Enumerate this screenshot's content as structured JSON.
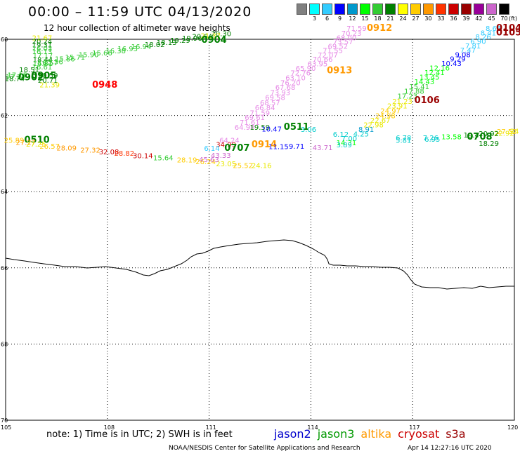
{
  "header": {
    "title": "00:00 – 11:59 UTC 04/13/2020",
    "subtitle": "12 hour collection of altimeter wave heights"
  },
  "color_scale": {
    "unit": "(ft)",
    "bins": [
      {
        "label": "",
        "color": "#808080"
      },
      {
        "label": "3",
        "color": "#00ffff"
      },
      {
        "label": "6",
        "color": "#33ccff"
      },
      {
        "label": "9",
        "color": "#0000ff"
      },
      {
        "label": "12",
        "color": "#0099cc"
      },
      {
        "label": "15",
        "color": "#00ff00"
      },
      {
        "label": "18",
        "color": "#33cc33"
      },
      {
        "label": "21",
        "color": "#008000"
      },
      {
        "label": "24",
        "color": "#ffff00"
      },
      {
        "label": "27",
        "color": "#ffcc00"
      },
      {
        "label": "30",
        "color": "#ff9900"
      },
      {
        "label": "33",
        "color": "#ff3300"
      },
      {
        "label": "36",
        "color": "#cc0000"
      },
      {
        "label": "39",
        "color": "#990000"
      },
      {
        "label": "42",
        "color": "#990099"
      },
      {
        "label": "45",
        "color": "#cc66cc"
      },
      {
        "label": "70",
        "color": "#000000"
      }
    ]
  },
  "axes": {
    "lat_ticks": [
      "60",
      "62",
      "64",
      "66",
      "68",
      "70"
    ],
    "lon_ticks": [
      "105",
      "108",
      "111",
      "114",
      "117",
      "120"
    ]
  },
  "observations": [
    {
      "text": "21.67",
      "color": "#e8e800",
      "lon": 105.78,
      "lat": 60.03
    },
    {
      "text": "20.24",
      "color": "#008000",
      "lon": 105.78,
      "lat": 60.12
    },
    {
      "text": "19.31",
      "color": "#008000",
      "lon": 105.78,
      "lat": 60.21
    },
    {
      "text": "16.03",
      "color": "#33cc33",
      "lon": 105.78,
      "lat": 60.3
    },
    {
      "text": "16.13",
      "color": "#33cc33",
      "lon": 105.78,
      "lat": 60.39
    },
    {
      "text": "17.17",
      "color": "#33cc33",
      "lon": 105.8,
      "lat": 60.5
    },
    {
      "text": "18.44",
      "color": "#008000",
      "lon": 105.8,
      "lat": 60.6
    },
    {
      "text": "16.81",
      "color": "#33cc33",
      "lon": 105.8,
      "lat": 60.7
    },
    {
      "text": "16.57",
      "color": "#33cc33",
      "lon": 105.95,
      "lat": 60.68
    },
    {
      "text": "16.61",
      "color": "#33cc33",
      "lon": 105.78,
      "lat": 60.79
    },
    {
      "text": "15.56",
      "color": "#33cc33",
      "lon": 106.1,
      "lat": 60.65
    },
    {
      "text": "15.86",
      "color": "#33cc33",
      "lon": 106.45,
      "lat": 60.58
    },
    {
      "text": "15.71",
      "color": "#33cc33",
      "lon": 106.75,
      "lat": 60.53
    },
    {
      "text": "15.90",
      "color": "#33cc33",
      "lon": 107.15,
      "lat": 60.47
    },
    {
      "text": "15.66",
      "color": "#33cc33",
      "lon": 107.55,
      "lat": 60.42
    },
    {
      "text": "16.38",
      "color": "#33cc33",
      "lon": 107.95,
      "lat": 60.37
    },
    {
      "text": "16.93",
      "color": "#33cc33",
      "lon": 108.3,
      "lat": 60.31
    },
    {
      "text": "16.94",
      "color": "#33cc33",
      "lon": 108.7,
      "lat": 60.26
    },
    {
      "text": "18.02",
      "color": "#008000",
      "lon": 109.1,
      "lat": 60.2
    },
    {
      "text": "18.13",
      "color": "#008000",
      "lon": 109.45,
      "lat": 60.15
    },
    {
      "text": "19.29",
      "color": "#008000",
      "lon": 109.85,
      "lat": 60.09
    },
    {
      "text": "19.96",
      "color": "#008000",
      "lon": 110.2,
      "lat": 60.04
    },
    {
      "text": "20.64",
      "color": "#008000",
      "lon": 110.5,
      "lat": 59.99
    },
    {
      "text": "20.30",
      "color": "#008000",
      "lon": 111.06,
      "lat": 59.92
    },
    {
      "text": "21.37",
      "color": "#e8e800",
      "lon": 110.75,
      "lat": 59.97
    },
    {
      "text": "0904",
      "color": "#008000",
      "lon": 110.77,
      "lat": 60.09,
      "time": true
    },
    {
      "text": "18.51",
      "color": "#008000",
      "lon": 105.4,
      "lat": 60.87
    },
    {
      "text": "17.15",
      "color": "#33cc33",
      "lon": 105.05,
      "lat": 61.0
    },
    {
      "text": "17.22",
      "color": "#33cc33",
      "lon": 105.0,
      "lat": 61.05
    },
    {
      "text": "20.59",
      "color": "#008000",
      "lon": 105.95,
      "lat": 61.01
    },
    {
      "text": "18.74",
      "color": "#008000",
      "lon": 104.97,
      "lat": 61.1
    },
    {
      "text": "0905",
      "color": "#008000",
      "lon": 105.75,
      "lat": 61.03,
      "time": true
    },
    {
      "text": "0902",
      "color": "#008000",
      "lon": 105.37,
      "lat": 61.08,
      "time": true
    },
    {
      "text": "20.71",
      "color": "#008000",
      "lon": 105.95,
      "lat": 61.14
    },
    {
      "text": "21.39",
      "color": "#e8e800",
      "lon": 106.0,
      "lat": 61.26
    },
    {
      "text": "0948",
      "color": "#ff0000",
      "lon": 107.55,
      "lat": 61.27,
      "time": true
    },
    {
      "text": "25.89",
      "color": "#ffcc00",
      "lon": 104.95,
      "lat": 62.72
    },
    {
      "text": "0510",
      "color": "#008000",
      "lon": 105.55,
      "lat": 62.72,
      "time": true
    },
    {
      "text": "27.27",
      "color": "#ff9900",
      "lon": 105.3,
      "lat": 62.77
    },
    {
      "text": "27.25",
      "color": "#e8e800",
      "lon": 105.6,
      "lat": 62.82
    },
    {
      "text": "26.57",
      "color": "#ffcc00",
      "lon": 106.0,
      "lat": 62.87
    },
    {
      "text": "28.09",
      "color": "#ff9900",
      "lon": 106.5,
      "lat": 62.92
    },
    {
      "text": "27.32",
      "color": "#ff9900",
      "lon": 107.2,
      "lat": 62.97
    },
    {
      "text": "32.08",
      "color": "#cc0000",
      "lon": 107.75,
      "lat": 63.02
    },
    {
      "text": "28.82",
      "color": "#ff3300",
      "lon": 108.2,
      "lat": 63.06
    },
    {
      "text": "30.14",
      "color": "#cc0000",
      "lon": 108.75,
      "lat": 63.12
    },
    {
      "text": "15.64",
      "color": "#33cc33",
      "lon": 109.35,
      "lat": 63.18
    },
    {
      "text": "28.19",
      "color": "#ffcc00",
      "lon": 110.05,
      "lat": 63.23
    },
    {
      "text": "26.24",
      "color": "#ffcc00",
      "lon": 110.6,
      "lat": 63.28
    },
    {
      "text": "23.05",
      "color": "#e8e800",
      "lon": 111.2,
      "lat": 63.33
    },
    {
      "text": "25.52",
      "color": "#ffcc00",
      "lon": 111.7,
      "lat": 63.38
    },
    {
      "text": "24.16",
      "color": "#e8e800",
      "lon": 112.25,
      "lat": 63.38
    },
    {
      "text": "71.59",
      "color": "#e68ae6",
      "lon": 115.05,
      "lat": 59.78
    },
    {
      "text": "70.23",
      "color": "#e68ae6",
      "lon": 114.9,
      "lat": 59.91
    },
    {
      "text": "68.00",
      "color": "#e68ae6",
      "lon": 114.75,
      "lat": 60.03
    },
    {
      "text": "73.57",
      "color": "#e68ae6",
      "lon": 114.65,
      "lat": 60.13
    },
    {
      "text": "69.52",
      "color": "#e68ae6",
      "lon": 114.5,
      "lat": 60.25
    },
    {
      "text": "71.55",
      "color": "#e68ae6",
      "lon": 114.35,
      "lat": 60.36
    },
    {
      "text": "72.07",
      "color": "#e68ae6",
      "lon": 114.2,
      "lat": 60.48
    },
    {
      "text": "70.66",
      "color": "#e68ae6",
      "lon": 114.05,
      "lat": 60.59
    },
    {
      "text": "63.95",
      "color": "#e68ae6",
      "lon": 113.9,
      "lat": 60.71
    },
    {
      "text": "65.90",
      "color": "#e68ae6",
      "lon": 113.55,
      "lat": 60.83
    },
    {
      "text": "72.76",
      "color": "#e68ae6",
      "lon": 113.4,
      "lat": 60.95
    },
    {
      "text": "63.10",
      "color": "#e68ae6",
      "lon": 113.25,
      "lat": 61.08
    },
    {
      "text": "76.20",
      "color": "#e68ae6",
      "lon": 113.1,
      "lat": 61.21
    },
    {
      "text": "67.68",
      "color": "#e68ae6",
      "lon": 112.95,
      "lat": 61.33
    },
    {
      "text": "73.93",
      "color": "#e68ae6",
      "lon": 112.8,
      "lat": 61.46
    },
    {
      "text": "69.58",
      "color": "#e68ae6",
      "lon": 112.65,
      "lat": 61.59
    },
    {
      "text": "68.57",
      "color": "#e68ae6",
      "lon": 112.5,
      "lat": 61.73
    },
    {
      "text": "66.84",
      "color": "#e68ae6",
      "lon": 112.35,
      "lat": 61.86
    },
    {
      "text": "71.59",
      "color": "#e68ae6",
      "lon": 112.2,
      "lat": 62.0
    },
    {
      "text": "69.61",
      "color": "#e68ae6",
      "lon": 112.05,
      "lat": 62.12
    },
    {
      "text": "71.61",
      "color": "#e68ae6",
      "lon": 111.9,
      "lat": 62.25
    },
    {
      "text": "64.98",
      "color": "#e68ae6",
      "lon": 111.75,
      "lat": 62.38
    },
    {
      "text": "0912",
      "color": "#ff9900",
      "lon": 115.65,
      "lat": 59.78,
      "time": true
    },
    {
      "text": "0913",
      "color": "#ff9900",
      "lon": 114.47,
      "lat": 60.89,
      "time": true
    },
    {
      "text": "19.59",
      "color": "#008000",
      "lon": 112.2,
      "lat": 62.38
    },
    {
      "text": "10.47",
      "color": "#0000ff",
      "lon": 112.55,
      "lat": 62.42
    },
    {
      "text": "0511",
      "color": "#008000",
      "lon": 113.2,
      "lat": 62.38,
      "time": true
    },
    {
      "text": "3.06",
      "color": "#00cccc",
      "lon": 113.7,
      "lat": 62.43
    },
    {
      "text": "64.24",
      "color": "#e68ae6",
      "lon": 111.3,
      "lat": 62.72
    },
    {
      "text": "34.99",
      "color": "#cc0000",
      "lon": 111.2,
      "lat": 62.83
    },
    {
      "text": "0914",
      "color": "#ff9900",
      "lon": 112.25,
      "lat": 62.84,
      "time": true
    },
    {
      "text": "11.15",
      "color": "#0000ff",
      "lon": 112.75,
      "lat": 62.88
    },
    {
      "text": "9.71",
      "color": "#0000ff",
      "lon": 113.35,
      "lat": 62.87
    },
    {
      "text": "43.71",
      "color": "#cc66cc",
      "lon": 114.05,
      "lat": 62.91
    },
    {
      "text": "6.14",
      "color": "#33ccff",
      "lon": 110.85,
      "lat": 62.93
    },
    {
      "text": "0707",
      "color": "#008000",
      "lon": 111.45,
      "lat": 62.93,
      "time": true
    },
    {
      "text": "43.33",
      "color": "#cc66cc",
      "lon": 111.05,
      "lat": 63.11
    },
    {
      "text": "45.63",
      "color": "#cc66cc",
      "lon": 110.7,
      "lat": 63.22
    },
    {
      "text": "8.66",
      "color": "#33ccff",
      "lon": 119.15,
      "lat": 59.78
    },
    {
      "text": "8.41",
      "color": "#33ccff",
      "lon": 119.0,
      "lat": 59.9
    },
    {
      "text": "8.26",
      "color": "#33ccff",
      "lon": 118.85,
      "lat": 60.0
    },
    {
      "text": "6.90",
      "color": "#33ccff",
      "lon": 118.7,
      "lat": 60.12
    },
    {
      "text": "7.81",
      "color": "#33ccff",
      "lon": 118.55,
      "lat": 60.24
    },
    {
      "text": "7.47",
      "color": "#33ccff",
      "lon": 118.4,
      "lat": 60.35
    },
    {
      "text": "9.08",
      "color": "#0000ff",
      "lon": 118.25,
      "lat": 60.47
    },
    {
      "text": "9.29",
      "color": "#0000ff",
      "lon": 118.1,
      "lat": 60.58
    },
    {
      "text": "10.43",
      "color": "#0000ff",
      "lon": 117.85,
      "lat": 60.7
    },
    {
      "text": "12.16",
      "color": "#00ff00",
      "lon": 117.5,
      "lat": 60.82
    },
    {
      "text": "12.41",
      "color": "#00ff00",
      "lon": 117.35,
      "lat": 60.94
    },
    {
      "text": "13.45",
      "color": "#00ff00",
      "lon": 117.2,
      "lat": 61.06
    },
    {
      "text": "14.43",
      "color": "#00ff00",
      "lon": 117.05,
      "lat": 61.18
    },
    {
      "text": "15.41",
      "color": "#33cc33",
      "lon": 116.9,
      "lat": 61.31
    },
    {
      "text": "17.88",
      "color": "#33cc33",
      "lon": 116.75,
      "lat": 61.43
    },
    {
      "text": "17.23",
      "color": "#33cc33",
      "lon": 116.55,
      "lat": 61.56
    },
    {
      "text": "21.23",
      "color": "#e8e800",
      "lon": 116.4,
      "lat": 61.69
    },
    {
      "text": "0106",
      "color": "#990000",
      "lon": 117.05,
      "lat": 61.68,
      "time": true
    },
    {
      "text": "23.91",
      "color": "#e8e800",
      "lon": 116.25,
      "lat": 61.81
    },
    {
      "text": "24.97",
      "color": "#ffcc00",
      "lon": 116.05,
      "lat": 61.94
    },
    {
      "text": "24.98",
      "color": "#ffcc00",
      "lon": 115.9,
      "lat": 62.07
    },
    {
      "text": "22.67",
      "color": "#e8e800",
      "lon": 115.75,
      "lat": 62.19
    },
    {
      "text": "22.98",
      "color": "#e8e800",
      "lon": 115.55,
      "lat": 62.31
    },
    {
      "text": "8.91",
      "color": "#0099cc",
      "lon": 115.4,
      "lat": 62.43
    },
    {
      "text": "4.25",
      "color": "#00cccc",
      "lon": 115.25,
      "lat": 62.55
    },
    {
      "text": "6.12",
      "color": "#00cccc",
      "lon": 114.65,
      "lat": 62.56
    },
    {
      "text": "7.00",
      "color": "#00cccc",
      "lon": 114.9,
      "lat": 62.67
    },
    {
      "text": "14.31",
      "color": "#00ff00",
      "lon": 114.75,
      "lat": 62.78
    },
    {
      "text": "3.89",
      "color": "#00cccc",
      "lon": 114.75,
      "lat": 62.84
    },
    {
      "text": "0104",
      "color": "#990000",
      "lon": 119.6,
      "lat": 59.78,
      "time": true
    },
    {
      "text": "0105",
      "color": "#990000",
      "lon": 119.55,
      "lat": 59.9,
      "time": true
    },
    {
      "text": "27.52",
      "color": "#ffcc00",
      "lon": 119.7,
      "lat": 62.49
    },
    {
      "text": "22.92",
      "color": "#e8e800",
      "lon": 119.4,
      "lat": 62.53
    },
    {
      "text": "20.92",
      "color": "#008000",
      "lon": 118.95,
      "lat": 62.54
    },
    {
      "text": "19.4",
      "color": "#008000",
      "lon": 118.5,
      "lat": 62.58
    },
    {
      "text": "0708",
      "color": "#008000",
      "lon": 118.6,
      "lat": 62.63,
      "time": true
    },
    {
      "text": "13.58",
      "color": "#00ff00",
      "lon": 117.85,
      "lat": 62.62
    },
    {
      "text": "7.26",
      "color": "#00cccc",
      "lon": 117.3,
      "lat": 62.65
    },
    {
      "text": "6.95",
      "color": "#00cccc",
      "lon": 117.35,
      "lat": 62.69
    },
    {
      "text": "6.78",
      "color": "#00cccc",
      "lon": 116.5,
      "lat": 62.65
    },
    {
      "text": "5.81",
      "color": "#00cccc",
      "lon": 116.5,
      "lat": 62.72
    },
    {
      "text": "18.29",
      "color": "#008000",
      "lon": 118.95,
      "lat": 62.8
    },
    {
      "text": "24",
      "color": "#e8e800",
      "lon": 120.0,
      "lat": 62.48
    }
  ],
  "footer": {
    "note": "note: 1) Time is in UTC; 2) SWH is in feet",
    "legend": [
      {
        "label": "jason2",
        "color": "#0000cc"
      },
      {
        "label": "jason3",
        "color": "#009900"
      },
      {
        "label": "altika",
        "color": "#ff9900"
      },
      {
        "label": "cryosat",
        "color": "#cc0000"
      },
      {
        "label": "s3a",
        "color": "#990000"
      }
    ],
    "credit": "NOAA/NESDIS Center for Satellite Applications and Research",
    "timestamp": "Apr 14 12:27:16 UTC 2020"
  }
}
